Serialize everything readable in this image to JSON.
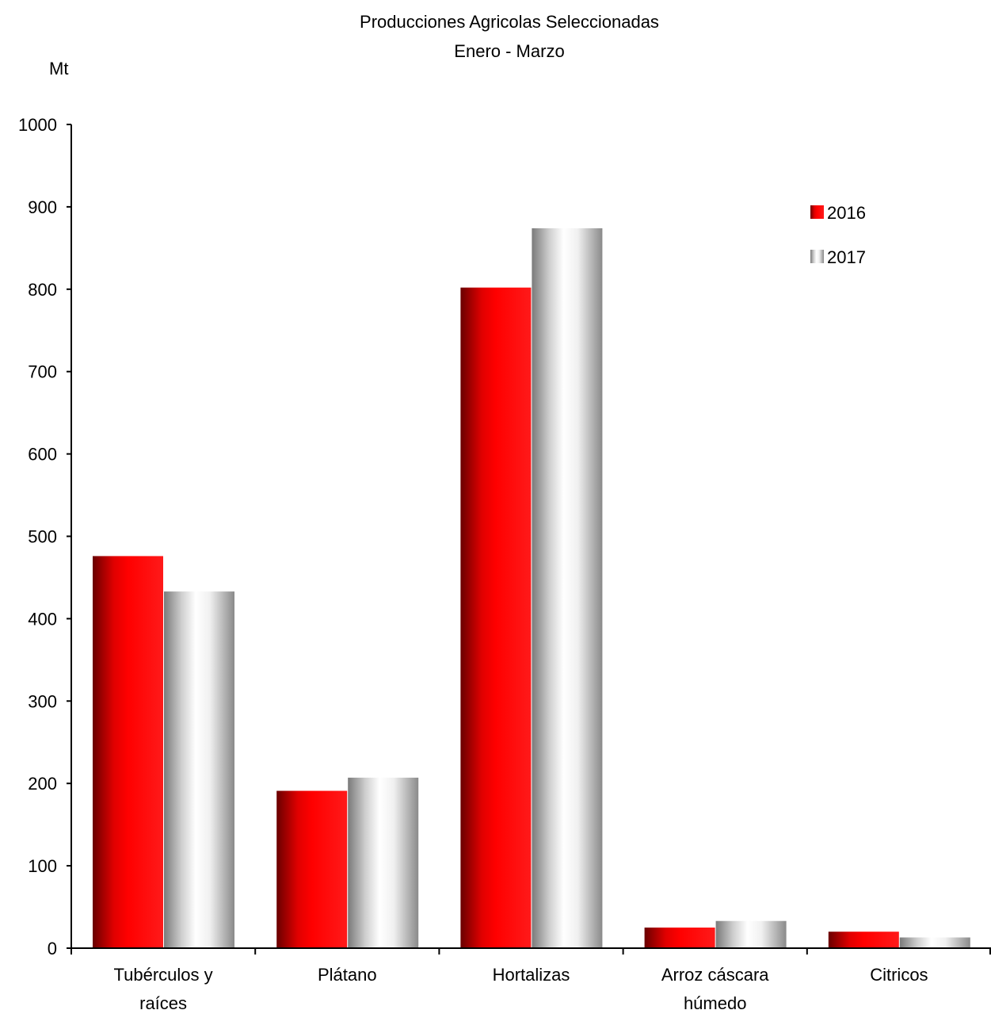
{
  "chart_data": {
    "type": "bar",
    "title": "Producciones Agricolas Seleccionadas",
    "subtitle": "Enero - Marzo",
    "ylabel": "Mt",
    "xlabel": "",
    "ylim": [
      0,
      1000
    ],
    "yticks": [
      0,
      100,
      200,
      300,
      400,
      500,
      600,
      700,
      800,
      900,
      1000
    ],
    "categories": [
      [
        "Tubérculos y",
        "raíces"
      ],
      [
        "Plátano"
      ],
      [
        "Hortalizas"
      ],
      [
        "Arroz cáscara",
        "húmedo"
      ],
      [
        "Citricos"
      ]
    ],
    "series": [
      {
        "name": "2016",
        "values": [
          476,
          191,
          802,
          25,
          20
        ],
        "color": "#ff0000"
      },
      {
        "name": "2017",
        "values": [
          433,
          207,
          874,
          33,
          13
        ],
        "color": "#c0c0c0"
      }
    ],
    "legend_position": "top-right",
    "grid": false
  }
}
